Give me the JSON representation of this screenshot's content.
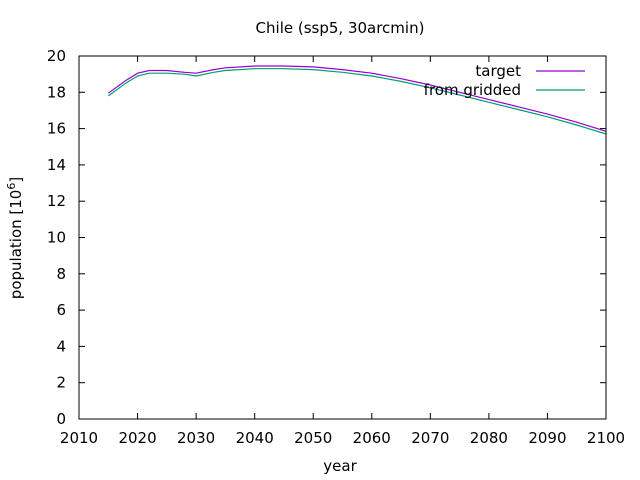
{
  "chart_data": {
    "type": "line",
    "title": "Chile (ssp5, 30arcmin)",
    "xlabel": "year",
    "ylabel_text": "population [10",
    "ylabel_exponent": "6",
    "ylabel_close": "]",
    "xlim": [
      2010,
      2100
    ],
    "ylim": [
      0,
      20
    ],
    "xticks": [
      2010,
      2020,
      2030,
      2040,
      2050,
      2060,
      2070,
      2080,
      2090,
      2100
    ],
    "yticks": [
      0,
      2,
      4,
      6,
      8,
      10,
      12,
      14,
      16,
      18,
      20
    ],
    "grid": false,
    "legend_position": "top-right",
    "series": [
      {
        "name": "target",
        "color": "#9400d3",
        "x": [
          2015,
          2018,
          2020,
          2022,
          2025,
          2028,
          2030,
          2033,
          2035,
          2040,
          2045,
          2050,
          2055,
          2060,
          2065,
          2070,
          2075,
          2080,
          2085,
          2090,
          2095,
          2100
        ],
        "y": [
          17.95,
          18.65,
          19.05,
          19.2,
          19.2,
          19.1,
          19.05,
          19.25,
          19.35,
          19.45,
          19.45,
          19.4,
          19.25,
          19.05,
          18.75,
          18.4,
          18.0,
          17.6,
          17.2,
          16.8,
          16.35,
          15.85
        ]
      },
      {
        "name": "from gridded",
        "color": "#009e73",
        "x": [
          2015,
          2018,
          2020,
          2022,
          2025,
          2028,
          2030,
          2033,
          2035,
          2040,
          2045,
          2050,
          2055,
          2060,
          2065,
          2070,
          2075,
          2080,
          2085,
          2090,
          2095,
          2100
        ],
        "y": [
          17.8,
          18.5,
          18.9,
          19.05,
          19.05,
          19.0,
          18.9,
          19.1,
          19.2,
          19.3,
          19.3,
          19.25,
          19.1,
          18.9,
          18.6,
          18.25,
          17.85,
          17.45,
          17.05,
          16.65,
          16.2,
          15.7
        ]
      }
    ]
  }
}
